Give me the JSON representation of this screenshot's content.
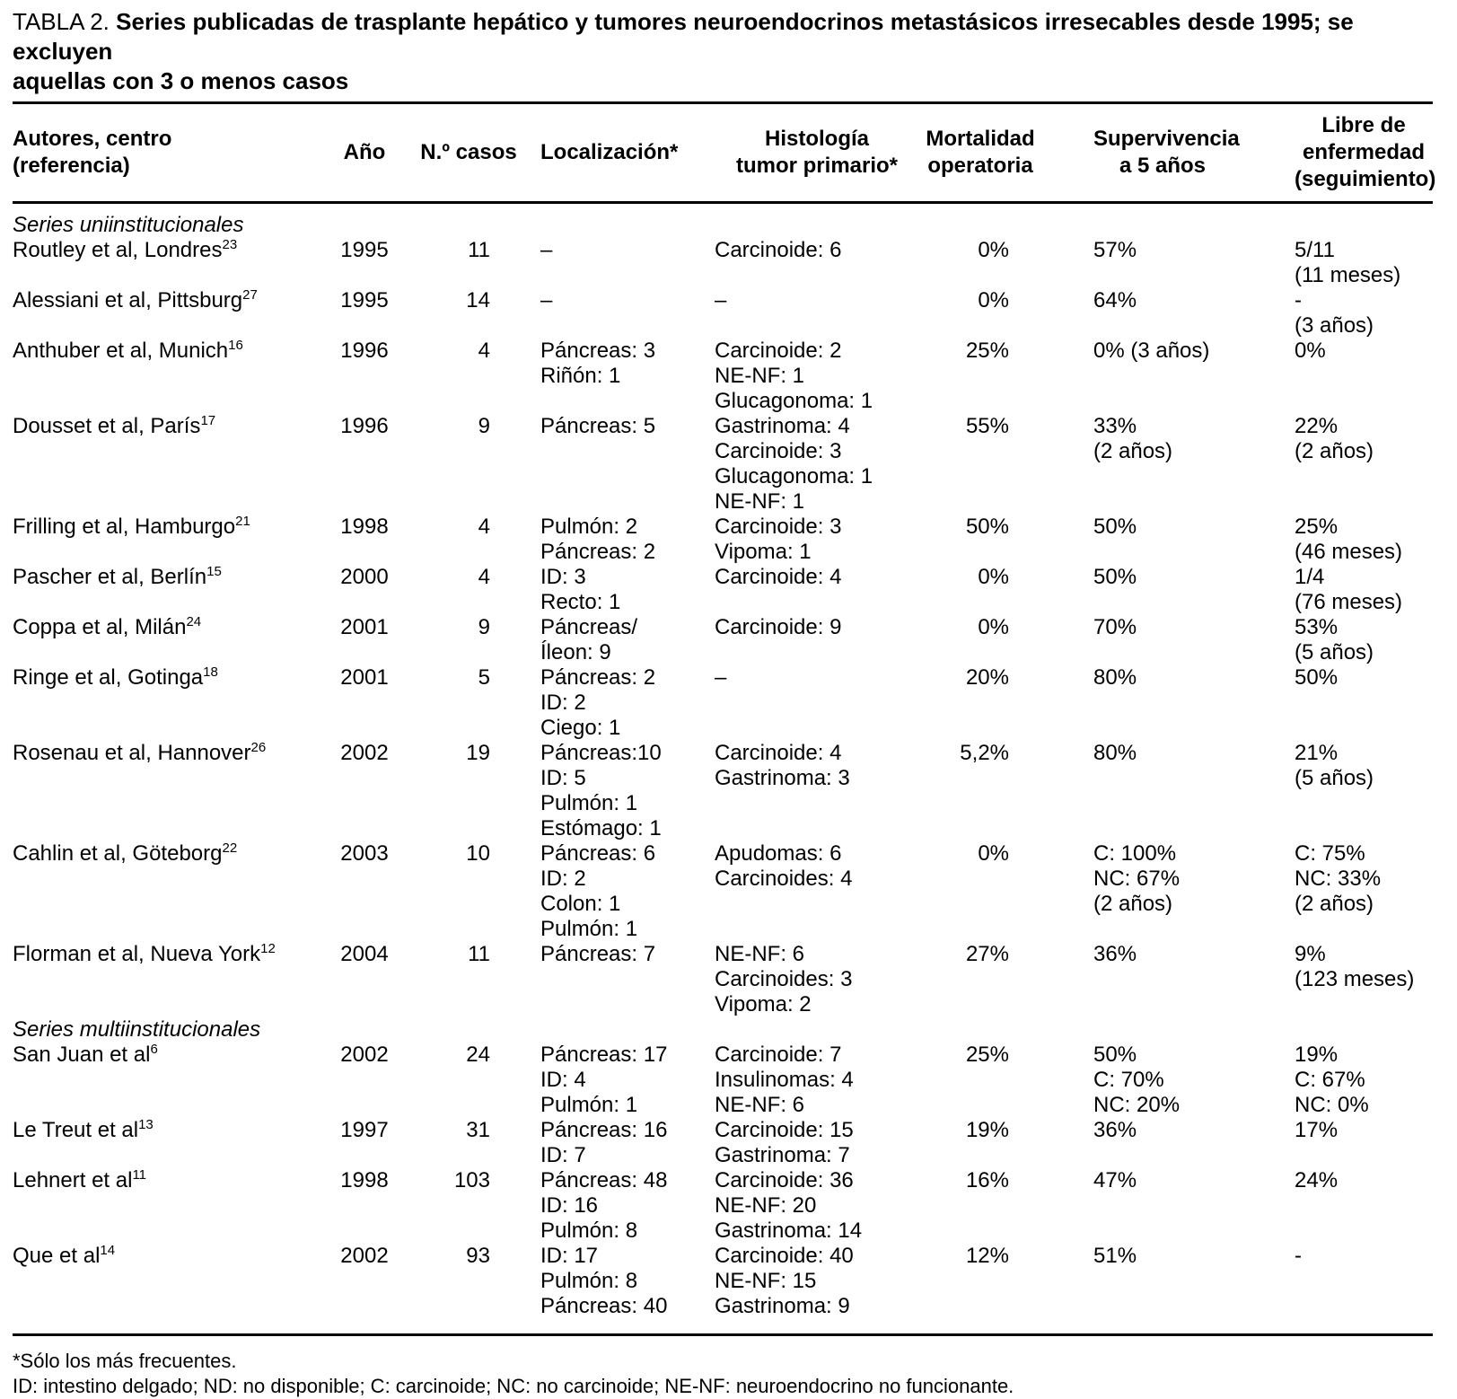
{
  "title": {
    "prefix": "TABLA 2.",
    "line1": "Series publicadas de trasplante hepático y tumores neuroendocrinos metastásicos irresecables desde 1995; se excluyen",
    "line2": "aquellas con 3 o menos casos"
  },
  "table": {
    "columns": [
      {
        "id": "autores",
        "lines": [
          "Autores, centro",
          "(referencia)"
        ]
      },
      {
        "id": "ano",
        "lines": [
          "Año"
        ]
      },
      {
        "id": "casos",
        "lines": [
          "N.º casos"
        ]
      },
      {
        "id": "localizacion",
        "lines": [
          "Localización*"
        ]
      },
      {
        "id": "histologia",
        "lines": [
          "Histología",
          "tumor primario*"
        ]
      },
      {
        "id": "mortalidad",
        "lines": [
          "Mortalidad",
          "operatoria"
        ]
      },
      {
        "id": "supervivencia",
        "lines": [
          "Supervivencia",
          "a 5 años"
        ]
      },
      {
        "id": "libre",
        "lines": [
          "Libre de",
          "enfermedad",
          "(seguimiento)"
        ]
      }
    ],
    "sections": [
      {
        "label": "Series uniinstitucionales",
        "rows": [
          {
            "autor": "Routley et al, Londres",
            "ref": "23",
            "ano": "1995",
            "casos": "11",
            "localizacion": [
              "–"
            ],
            "histologia": [
              "Carcinoide: 6"
            ],
            "mortalidad": "0%",
            "supervivencia": [
              "57%"
            ],
            "libre": [
              "5/11",
              "(11 meses)"
            ]
          },
          {
            "autor": "Alessiani et al, Pittsburg",
            "ref": "27",
            "ano": "1995",
            "casos": "14",
            "localizacion": [
              "–"
            ],
            "histologia": [
              "–"
            ],
            "mortalidad": "0%",
            "supervivencia": [
              "64%"
            ],
            "libre": [
              "-",
              "(3 años)"
            ]
          },
          {
            "autor": "Anthuber et al, Munich",
            "ref": "16",
            "ano": "1996",
            "casos": "4",
            "localizacion": [
              "Páncreas: 3",
              "Riñón: 1"
            ],
            "histologia": [
              "Carcinoide: 2",
              "NE-NF: 1",
              "Glucagonoma: 1"
            ],
            "mortalidad": "25%",
            "supervivencia": [
              "0% (3 años)"
            ],
            "libre": [
              "0%"
            ]
          },
          {
            "autor": "Dousset et al, París",
            "ref": "17",
            "ano": "1996",
            "casos": "9",
            "localizacion": [
              "Páncreas: 5"
            ],
            "histologia": [
              "Gastrinoma: 4",
              "Carcinoide: 3",
              "Glucagonoma: 1",
              "NE-NF: 1"
            ],
            "mortalidad": "55%",
            "supervivencia": [
              "33%",
              "(2 años)"
            ],
            "libre": [
              "22%",
              "(2 años)"
            ]
          },
          {
            "autor": "Frilling et al, Hamburgo",
            "ref": "21",
            "ano": "1998",
            "casos": "4",
            "localizacion": [
              "Pulmón: 2",
              "Páncreas: 2"
            ],
            "histologia": [
              "Carcinoide: 3",
              "Vipoma: 1"
            ],
            "mortalidad": "50%",
            "supervivencia": [
              "50%"
            ],
            "libre": [
              "25%",
              "(46 meses)"
            ]
          },
          {
            "autor": "Pascher et al, Berlín",
            "ref": "15",
            "ano": "2000",
            "casos": "4",
            "localizacion": [
              "ID: 3",
              "Recto: 1"
            ],
            "histologia": [
              "Carcinoide: 4"
            ],
            "mortalidad": "0%",
            "supervivencia": [
              "50%"
            ],
            "libre": [
              "1/4",
              "(76 meses)"
            ]
          },
          {
            "autor": "Coppa et al, Milán",
            "ref": "24",
            "ano": "2001",
            "casos": "9",
            "localizacion": [
              "Páncreas/",
              "Íleon: 9"
            ],
            "histologia": [
              "Carcinoide: 9"
            ],
            "mortalidad": "0%",
            "supervivencia": [
              "70%"
            ],
            "libre": [
              "53%",
              "(5 años)"
            ]
          },
          {
            "autor": "Ringe et al, Gotinga",
            "ref": "18",
            "ano": "2001",
            "casos": "5",
            "localizacion": [
              "Páncreas: 2",
              "ID: 2",
              "Ciego: 1"
            ],
            "histologia": [
              "–"
            ],
            "mortalidad": "20%",
            "supervivencia": [
              "80%"
            ],
            "libre": [
              "50%"
            ]
          },
          {
            "autor": "Rosenau et al, Hannover",
            "ref": "26",
            "ano": "2002",
            "casos": "19",
            "localizacion": [
              "Páncreas:10",
              "ID: 5",
              "Pulmón: 1",
              "Estómago: 1"
            ],
            "histologia": [
              "Carcinoide: 4",
              "Gastrinoma: 3"
            ],
            "mortalidad": "5,2%",
            "supervivencia": [
              "80%"
            ],
            "libre": [
              "21%",
              "(5 años)"
            ]
          },
          {
            "autor": "Cahlin et al, Göteborg",
            "ref": "22",
            "ano": "2003",
            "casos": "10",
            "localizacion": [
              "Páncreas: 6",
              "ID: 2",
              "Colon: 1",
              "Pulmón: 1"
            ],
            "histologia": [
              "Apudomas: 6",
              "Carcinoides: 4"
            ],
            "mortalidad": "0%",
            "supervivencia": [
              "C: 100%",
              "NC: 67%",
              "(2 años)"
            ],
            "libre": [
              "C: 75%",
              "NC: 33%",
              "(2 años)"
            ]
          },
          {
            "autor": "Florman et al, Nueva York",
            "ref": "12",
            "ano": "2004",
            "casos": "11",
            "localizacion": [
              "Páncreas: 7"
            ],
            "histologia": [
              "NE-NF: 6",
              "Carcinoides: 3",
              "Vipoma: 2"
            ],
            "mortalidad": "27%",
            "supervivencia": [
              "36%"
            ],
            "libre": [
              "9%",
              "(123 meses)"
            ]
          }
        ]
      },
      {
        "label": "Series multiinstitucionales",
        "rows": [
          {
            "autor": "San Juan et al",
            "ref": "6",
            "ano": "2002",
            "casos": "24",
            "localizacion": [
              "Páncreas: 17",
              "ID: 4",
              "Pulmón: 1"
            ],
            "histologia": [
              "Carcinoide: 7",
              "Insulinomas: 4",
              "NE-NF: 6"
            ],
            "mortalidad": "25%",
            "supervivencia": [
              "50%",
              "C: 70%",
              "NC: 20%"
            ],
            "libre": [
              "19%",
              "C: 67%",
              "NC: 0%"
            ]
          },
          {
            "autor": "Le Treut et al",
            "ref": "13",
            "ano": "1997",
            "casos": "31",
            "localizacion": [
              "Páncreas: 16",
              "ID: 7"
            ],
            "histologia": [
              "Carcinoide: 15",
              "Gastrinoma: 7"
            ],
            "mortalidad": "19%",
            "supervivencia": [
              "36%"
            ],
            "libre": [
              "17%"
            ]
          },
          {
            "autor": "Lehnert et al",
            "ref": "11",
            "ano": "1998",
            "casos": "103",
            "localizacion": [
              "Páncreas: 48",
              "ID: 16",
              "Pulmón: 8"
            ],
            "histologia": [
              "Carcinoide: 36",
              "NE-NF: 20",
              "Gastrinoma: 14"
            ],
            "mortalidad": "16%",
            "supervivencia": [
              "47%"
            ],
            "libre": [
              "24%"
            ]
          },
          {
            "autor": "Que et al",
            "ref": "14",
            "ano": "2002",
            "casos": "93",
            "localizacion": [
              "ID: 17",
              "Pulmón: 8",
              "Páncreas: 40"
            ],
            "histologia": [
              "Carcinoide: 40",
              "NE-NF: 15",
              "Gastrinoma: 9"
            ],
            "mortalidad": "12%",
            "supervivencia": [
              "51%"
            ],
            "libre": [
              "-"
            ]
          }
        ]
      }
    ]
  },
  "footnotes": [
    "*Sólo los más frecuentes.",
    "ID: intestino delgado; ND: no disponible; C: carcinoide; NC: no carcinoide; NE-NF: neuroendocrino no funcionante."
  ]
}
